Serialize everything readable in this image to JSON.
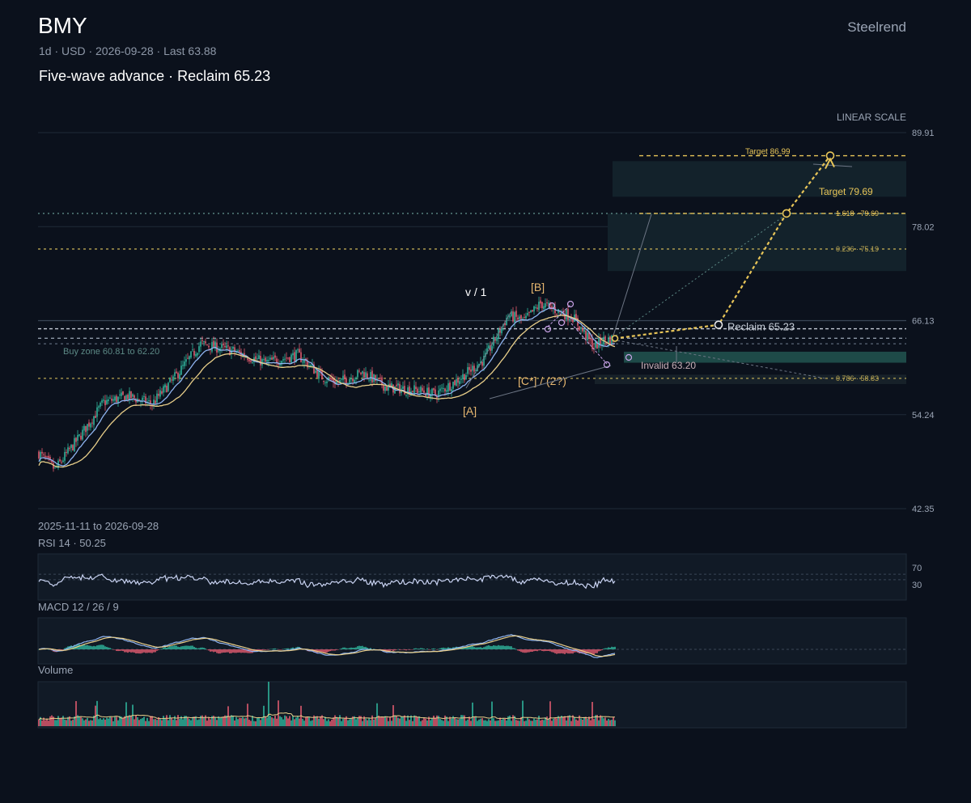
{
  "header": {
    "symbol": "BMY",
    "subtitle": "1d · USD · 2026-09-28 · Last 63.88",
    "brand": "Steelrend",
    "title": "Five-wave advance · Reclaim 65.23"
  },
  "chart_data": {
    "type": "candlestick",
    "scale_label": "LINEAR SCALE",
    "date_range": "2025-11-11 to 2026-09-28",
    "y_ticks": [
      "89.91",
      "78.02",
      "66.13",
      "54.24",
      "42.35"
    ],
    "ylim": [
      42.35,
      89.91
    ],
    "price_waypoints": [
      [
        0,
        49.4
      ],
      [
        10,
        47.3
      ],
      [
        25,
        51.4
      ],
      [
        40,
        55.8
      ],
      [
        55,
        56.6
      ],
      [
        70,
        55.6
      ],
      [
        85,
        59.2
      ],
      [
        100,
        63.2
      ],
      [
        120,
        62.3
      ],
      [
        140,
        60.8
      ],
      [
        160,
        61.8
      ],
      [
        175,
        59.0
      ],
      [
        185,
        58.3
      ],
      [
        200,
        59.6
      ],
      [
        215,
        57.7
      ],
      [
        235,
        57.3
      ],
      [
        245,
        56.8
      ],
      [
        260,
        58.8
      ],
      [
        275,
        61.2
      ],
      [
        290,
        66.8
      ],
      [
        300,
        66.1
      ],
      [
        310,
        68.3
      ],
      [
        320,
        67.4
      ],
      [
        330,
        66.6
      ],
      [
        343,
        62.8
      ],
      [
        348,
        63.6
      ],
      [
        356,
        63.88
      ]
    ],
    "levels": [
      {
        "price": 86.99,
        "label": "Target 86.99",
        "color": "#e8c558"
      },
      {
        "price": 79.69,
        "label": "1.618 · 79.69",
        "color": "#e8c558"
      },
      {
        "price": 75.19,
        "label": "0.236 · 75.19",
        "color": "#b9a552"
      },
      {
        "price": 58.83,
        "label": "0.786 · 58.83",
        "color": "#b9a552"
      },
      {
        "price": 65.23,
        "label": "Reclaim 65.23",
        "color": "#c7ced8"
      },
      {
        "price": 63.2,
        "label": "Invalid 63.20",
        "color": "#c7ced8"
      }
    ],
    "buy_zone": {
      "low": 60.81,
      "high": 62.2,
      "label": "Buy zone 60.81 to 62.20"
    },
    "target_label": "Target 79.69",
    "waves": [
      "v / 1",
      "[B]",
      "[A]",
      "[C*] / (2?)"
    ],
    "projection": [
      [
        356,
        63.88
      ],
      [
        420,
        65.6
      ],
      [
        462,
        79.69
      ],
      [
        489,
        86.99
      ]
    ],
    "indicators": {
      "rsi": {
        "label": "RSI 14 · 50.25",
        "levels": [
          "70",
          "30"
        ]
      },
      "macd": {
        "label": "MACD 12 / 26 / 9"
      },
      "volume": {
        "label": "Volume"
      }
    }
  }
}
